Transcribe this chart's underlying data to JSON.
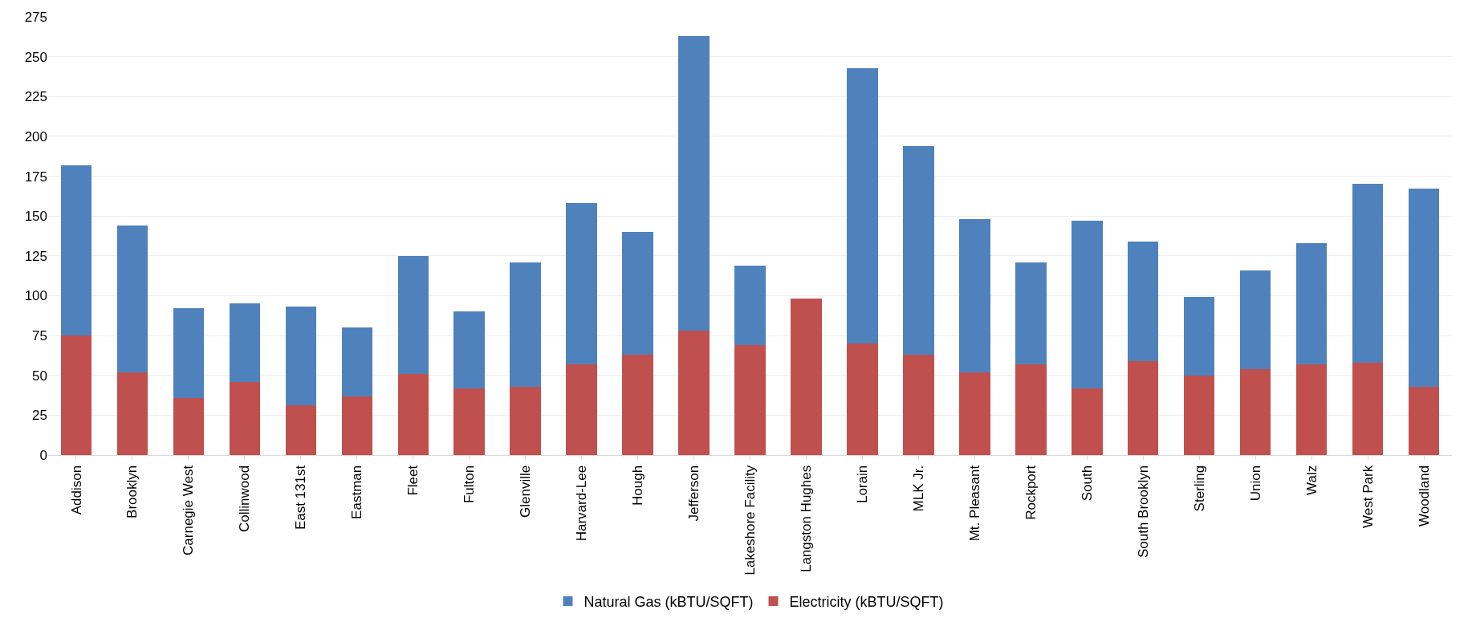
{
  "chart_data": {
    "type": "bar",
    "stacked": true,
    "categories": [
      "Addison",
      "Brooklyn",
      "Carnegie West",
      "Collinwood",
      "East 131st",
      "Eastman",
      "Fleet",
      "Fulton",
      "Glenville",
      "Harvard-Lee",
      "Hough",
      "Jefferson",
      "Lakeshore Facility",
      "Langston Hughes",
      "Lorain",
      "MLK Jr.",
      "Mt. Pleasant",
      "Rockport",
      "South",
      "South Brooklyn",
      "Sterling",
      "Union",
      "Walz",
      "West Park",
      "Woodland"
    ],
    "series": [
      {
        "name": "Electricity (kBTU/SQFT)",
        "color": "#c0504d",
        "values": [
          75,
          52,
          36,
          46,
          31,
          37,
          51,
          42,
          43,
          57,
          63,
          78,
          69,
          98,
          70,
          63,
          52,
          57,
          42,
          59,
          50,
          54,
          57,
          58,
          43
        ]
      },
      {
        "name": "Natural Gas (kBTU/SQFT)",
        "color": "#4f81bd",
        "values": [
          107,
          92,
          56,
          49,
          62,
          43,
          74,
          48,
          78,
          101,
          77,
          185,
          50,
          0,
          173,
          131,
          96,
          64,
          105,
          75,
          49,
          62,
          76,
          112,
          124
        ]
      }
    ],
    "ylim": [
      0,
      275
    ],
    "yticks": [
      0,
      25,
      50,
      75,
      100,
      125,
      150,
      175,
      200,
      225,
      250,
      275
    ],
    "grid": "y",
    "legend": "bottom"
  }
}
